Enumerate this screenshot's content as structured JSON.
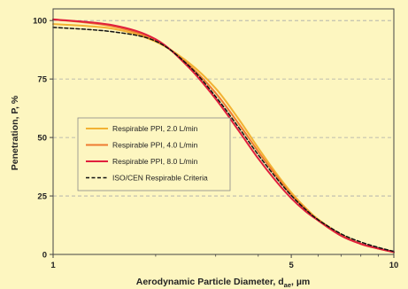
{
  "chart_data": {
    "type": "line",
    "xlabel": "Aerodynamic Particle Diameter, d",
    "xlabel_subscript": "ae",
    "xlabel_unit": ", µm",
    "ylabel": "Penetration, P, %",
    "xscale": "log",
    "xlim": [
      1,
      10
    ],
    "ylim": [
      0,
      105
    ],
    "x_ticks": [
      1,
      5,
      10
    ],
    "y_ticks": [
      0,
      25,
      50,
      75,
      100
    ],
    "grid": "horizontal dashed",
    "legend_position": "center-left",
    "series": [
      {
        "name": "Respirable PPI, 2.0 L/min",
        "color": "#f2b233",
        "style": "solid",
        "x": [
          1,
          1.5,
          2,
          2.5,
          3,
          3.5,
          4,
          4.5,
          5,
          5.5,
          6,
          7,
          8,
          9,
          10
        ],
        "y": [
          98.5,
          96.5,
          91,
          82,
          71,
          58,
          45.5,
          35,
          26.5,
          20,
          15,
          8.5,
          4.5,
          2.5,
          1
        ]
      },
      {
        "name": "Respirable PPI, 4.0 L/min",
        "color": "#ee7b30",
        "style": "solid",
        "x": [
          1,
          1.5,
          2,
          2.5,
          3,
          3.5,
          4,
          4.5,
          5,
          5.5,
          6,
          7,
          8,
          9,
          10
        ],
        "y": [
          100.5,
          97.5,
          91.5,
          81,
          69,
          56,
          44,
          34,
          25.5,
          19.5,
          14.5,
          8,
          4.5,
          2.5,
          1
        ]
      },
      {
        "name": "Respirable PPI, 8.0 L/min",
        "color": "#e01f3d",
        "style": "solid",
        "x": [
          1,
          1.5,
          2,
          2.5,
          3,
          3.5,
          4,
          4.5,
          5,
          5.5,
          6,
          7,
          8,
          9,
          10
        ],
        "y": [
          100.5,
          98,
          92,
          80,
          66.5,
          53,
          41,
          31.5,
          24,
          18.5,
          14.5,
          8,
          4.5,
          2.5,
          1
        ]
      },
      {
        "name": "ISO/CEN Respirable Criteria",
        "color": "#111111",
        "style": "dashed",
        "x": [
          1,
          1.5,
          2,
          2.5,
          3,
          3.5,
          4,
          4.5,
          5,
          5.5,
          6,
          7,
          8,
          9,
          10
        ],
        "y": [
          97.1,
          95.2,
          91.2,
          80.7,
          67.5,
          54.4,
          42.6,
          33,
          25.2,
          19.3,
          14.8,
          8.8,
          5.3,
          3,
          1.3
        ]
      }
    ]
  }
}
